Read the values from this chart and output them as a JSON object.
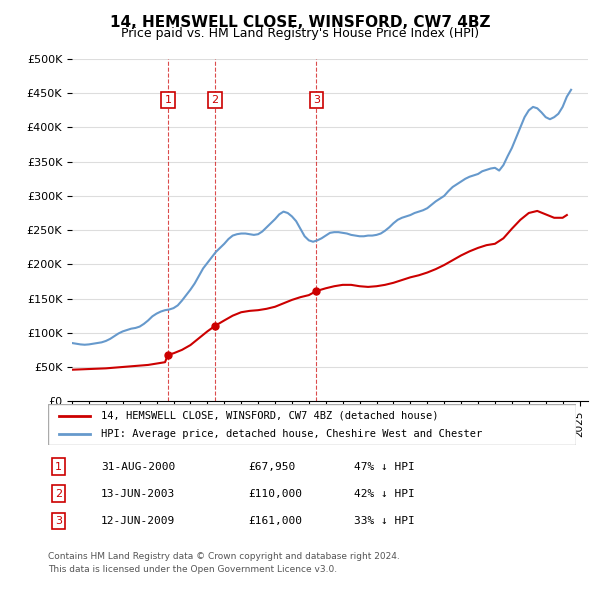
{
  "title": "14, HEMSWELL CLOSE, WINSFORD, CW7 4BZ",
  "subtitle": "Price paid vs. HM Land Registry's House Price Index (HPI)",
  "ylabel_ticks": [
    "£0",
    "£50K",
    "£100K",
    "£150K",
    "£200K",
    "£250K",
    "£300K",
    "£350K",
    "£400K",
    "£450K",
    "£500K"
  ],
  "ylim": [
    0,
    500000
  ],
  "xlim_start": 1995.0,
  "xlim_end": 2025.5,
  "legend_line1": "14, HEMSWELL CLOSE, WINSFORD, CW7 4BZ (detached house)",
  "legend_line2": "HPI: Average price, detached house, Cheshire West and Chester",
  "line_color_red": "#cc0000",
  "line_color_blue": "#6699cc",
  "transactions": [
    {
      "num": 1,
      "date": "31-AUG-2000",
      "price": 67950,
      "pct": "47%",
      "x": 2000.67
    },
    {
      "num": 2,
      "date": "13-JUN-2003",
      "price": 110000,
      "pct": "42%",
      "x": 2003.45
    },
    {
      "num": 3,
      "date": "12-JUN-2009",
      "price": 161000,
      "pct": "33%",
      "x": 2009.45
    }
  ],
  "footer_line1": "Contains HM Land Registry data © Crown copyright and database right 2024.",
  "footer_line2": "This data is licensed under the Open Government Licence v3.0.",
  "hpi_data": {
    "x": [
      1995.0,
      1995.25,
      1995.5,
      1995.75,
      1996.0,
      1996.25,
      1996.5,
      1996.75,
      1997.0,
      1997.25,
      1997.5,
      1997.75,
      1998.0,
      1998.25,
      1998.5,
      1998.75,
      1999.0,
      1999.25,
      1999.5,
      1999.75,
      2000.0,
      2000.25,
      2000.5,
      2000.75,
      2001.0,
      2001.25,
      2001.5,
      2001.75,
      2002.0,
      2002.25,
      2002.5,
      2002.75,
      2003.0,
      2003.25,
      2003.5,
      2003.75,
      2004.0,
      2004.25,
      2004.5,
      2004.75,
      2005.0,
      2005.25,
      2005.5,
      2005.75,
      2006.0,
      2006.25,
      2006.5,
      2006.75,
      2007.0,
      2007.25,
      2007.5,
      2007.75,
      2008.0,
      2008.25,
      2008.5,
      2008.75,
      2009.0,
      2009.25,
      2009.5,
      2009.75,
      2010.0,
      2010.25,
      2010.5,
      2010.75,
      2011.0,
      2011.25,
      2011.5,
      2011.75,
      2012.0,
      2012.25,
      2012.5,
      2012.75,
      2013.0,
      2013.25,
      2013.5,
      2013.75,
      2014.0,
      2014.25,
      2014.5,
      2014.75,
      2015.0,
      2015.25,
      2015.5,
      2015.75,
      2016.0,
      2016.25,
      2016.5,
      2016.75,
      2017.0,
      2017.25,
      2017.5,
      2017.75,
      2018.0,
      2018.25,
      2018.5,
      2018.75,
      2019.0,
      2019.25,
      2019.5,
      2019.75,
      2020.0,
      2020.25,
      2020.5,
      2020.75,
      2021.0,
      2021.25,
      2021.5,
      2021.75,
      2022.0,
      2022.25,
      2022.5,
      2022.75,
      2023.0,
      2023.25,
      2023.5,
      2023.75,
      2024.0,
      2024.25,
      2024.5
    ],
    "y": [
      85000,
      84000,
      83000,
      82500,
      83000,
      84000,
      85000,
      86000,
      88000,
      91000,
      95000,
      99000,
      102000,
      104000,
      106000,
      107000,
      109000,
      113000,
      118000,
      124000,
      128000,
      131000,
      133000,
      134000,
      136000,
      140000,
      147000,
      155000,
      163000,
      172000,
      183000,
      194000,
      202000,
      210000,
      218000,
      224000,
      230000,
      237000,
      242000,
      244000,
      245000,
      245000,
      244000,
      243000,
      244000,
      248000,
      254000,
      260000,
      266000,
      273000,
      277000,
      275000,
      270000,
      263000,
      252000,
      241000,
      235000,
      233000,
      235000,
      238000,
      242000,
      246000,
      247000,
      247000,
      246000,
      245000,
      243000,
      242000,
      241000,
      241000,
      242000,
      242000,
      243000,
      245000,
      249000,
      254000,
      260000,
      265000,
      268000,
      270000,
      272000,
      275000,
      277000,
      279000,
      282000,
      287000,
      292000,
      296000,
      300000,
      307000,
      313000,
      317000,
      321000,
      325000,
      328000,
      330000,
      332000,
      336000,
      338000,
      340000,
      341000,
      337000,
      345000,
      358000,
      370000,
      385000,
      400000,
      415000,
      425000,
      430000,
      428000,
      422000,
      415000,
      412000,
      415000,
      420000,
      430000,
      445000,
      455000
    ]
  },
  "price_data": {
    "x": [
      1995.0,
      1995.5,
      1996.0,
      1996.5,
      1997.0,
      1997.5,
      1998.0,
      1998.5,
      1999.0,
      1999.5,
      2000.0,
      2000.5,
      2000.67,
      2001.0,
      2001.5,
      2002.0,
      2002.5,
      2003.0,
      2003.45,
      2004.0,
      2004.5,
      2005.0,
      2005.5,
      2006.0,
      2006.5,
      2007.0,
      2007.5,
      2008.0,
      2008.5,
      2009.0,
      2009.45,
      2010.0,
      2010.5,
      2011.0,
      2011.5,
      2012.0,
      2012.5,
      2013.0,
      2013.5,
      2014.0,
      2014.5,
      2015.0,
      2015.5,
      2016.0,
      2016.5,
      2017.0,
      2017.5,
      2018.0,
      2018.5,
      2019.0,
      2019.5,
      2020.0,
      2020.5,
      2021.0,
      2021.5,
      2022.0,
      2022.5,
      2023.0,
      2023.5,
      2024.0,
      2024.25
    ],
    "y": [
      46000,
      46500,
      47000,
      47500,
      48000,
      49000,
      50000,
      51000,
      52000,
      53000,
      55000,
      57000,
      67950,
      70000,
      75000,
      82000,
      92000,
      102000,
      110000,
      118000,
      125000,
      130000,
      132000,
      133000,
      135000,
      138000,
      143000,
      148000,
      152000,
      155000,
      161000,
      165000,
      168000,
      170000,
      170000,
      168000,
      167000,
      168000,
      170000,
      173000,
      177000,
      181000,
      184000,
      188000,
      193000,
      199000,
      206000,
      213000,
      219000,
      224000,
      228000,
      230000,
      238000,
      252000,
      265000,
      275000,
      278000,
      273000,
      268000,
      268000,
      272000
    ]
  }
}
